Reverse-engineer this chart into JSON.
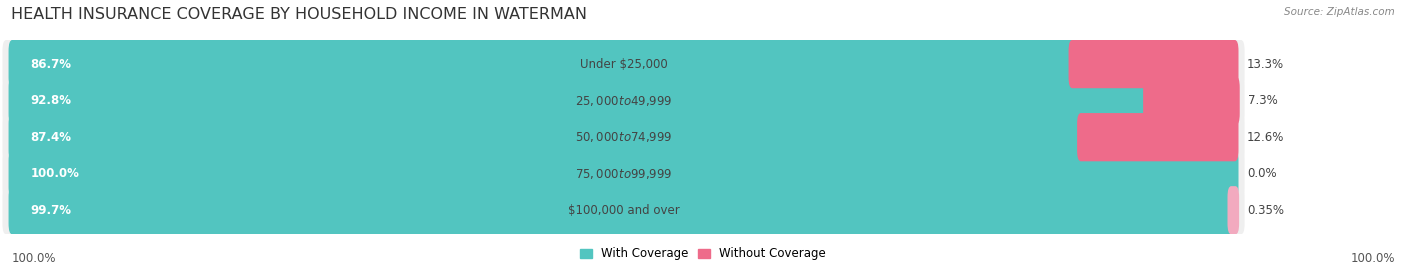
{
  "title": "HEALTH INSURANCE COVERAGE BY HOUSEHOLD INCOME IN WATERMAN",
  "source": "Source: ZipAtlas.com",
  "categories": [
    "Under $25,000",
    "$25,000 to $49,999",
    "$50,000 to $74,999",
    "$75,000 to $99,999",
    "$100,000 and over"
  ],
  "with_coverage": [
    86.7,
    92.8,
    87.4,
    100.0,
    99.7
  ],
  "without_coverage": [
    13.3,
    7.3,
    12.6,
    0.0,
    0.35
  ],
  "with_coverage_labels": [
    "86.7%",
    "92.8%",
    "87.4%",
    "100.0%",
    "99.7%"
  ],
  "without_coverage_labels": [
    "13.3%",
    "7.3%",
    "12.6%",
    "0.0%",
    "0.35%"
  ],
  "color_with": "#52C5C0",
  "color_without_dark": "#EE6B8A",
  "color_without_light": "#F2AABF",
  "bar_bg_color": "#E4E4E4",
  "bar_row_bg": "#EFEFEF",
  "title_fontsize": 11.5,
  "label_fontsize": 8.5,
  "legend_fontsize": 8.5,
  "bottom_left_label": "100.0%",
  "bottom_right_label": "100.0%",
  "fig_bg_color": "#FFFFFF"
}
